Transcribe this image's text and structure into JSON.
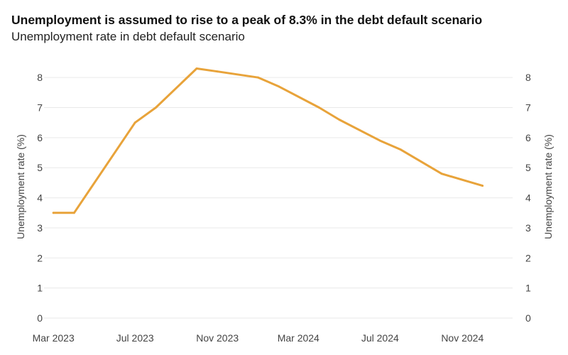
{
  "title": "Unemployment is assumed to rise to a peak of 8.3% in the debt default scenario",
  "subtitle": "Unemployment rate in debt default scenario",
  "chart_data": {
    "type": "line",
    "ylabel_left": "Unemployment rate (%)",
    "ylabel_right": "Unemployment rate (%)",
    "ylim": [
      0,
      8.5
    ],
    "yticks": [
      0,
      1,
      2,
      3,
      4,
      5,
      6,
      7,
      8
    ],
    "xlim": [
      "2023-02-15",
      "2025-01-15"
    ],
    "xticks": [
      {
        "label": "Mar 2023",
        "date": "2023-03-01"
      },
      {
        "label": "Jul 2023",
        "date": "2023-07-01"
      },
      {
        "label": "Nov 2023",
        "date": "2023-11-01"
      },
      {
        "label": "Mar 2024",
        "date": "2024-03-01"
      },
      {
        "label": "Jul 2024",
        "date": "2024-07-01"
      },
      {
        "label": "Nov 2024",
        "date": "2024-11-01"
      }
    ],
    "grid": true,
    "series": [
      {
        "color": "#E8A33A",
        "points": [
          {
            "x": "2023-03-01",
            "y": 3.5
          },
          {
            "x": "2023-04-01",
            "y": 3.5
          },
          {
            "x": "2023-07-01",
            "y": 6.5
          },
          {
            "x": "2023-08-01",
            "y": 7.0
          },
          {
            "x": "2023-10-01",
            "y": 8.3
          },
          {
            "x": "2023-11-01",
            "y": 8.2
          },
          {
            "x": "2024-01-01",
            "y": 8.0
          },
          {
            "x": "2024-02-01",
            "y": 7.7
          },
          {
            "x": "2024-04-01",
            "y": 7.0
          },
          {
            "x": "2024-05-01",
            "y": 6.6
          },
          {
            "x": "2024-07-01",
            "y": 5.9
          },
          {
            "x": "2024-08-01",
            "y": 5.6
          },
          {
            "x": "2024-10-01",
            "y": 4.8
          },
          {
            "x": "2024-12-01",
            "y": 4.4
          }
        ]
      }
    ]
  }
}
